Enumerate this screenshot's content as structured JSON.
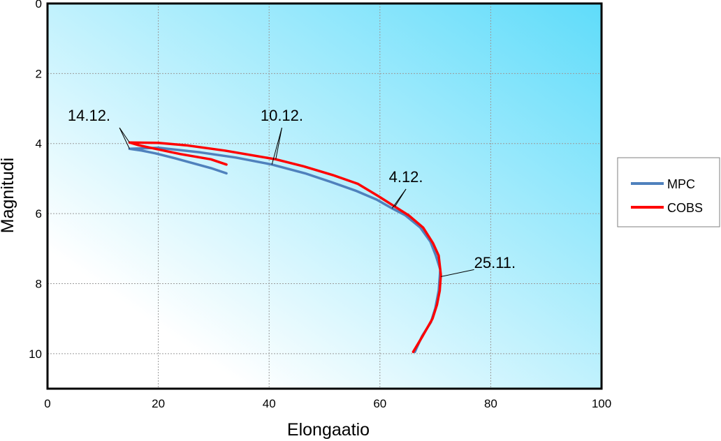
{
  "chart_data": {
    "type": "line",
    "xlabel": "Elongaatio",
    "ylabel": "Magnitudi",
    "xlim": [
      0,
      100
    ],
    "ylim": [
      0,
      11
    ],
    "y_inverted": true,
    "x_ticks": [
      "0",
      "20",
      "40",
      "60",
      "80",
      "100"
    ],
    "y_ticks": [
      "0",
      "2",
      "4",
      "6",
      "8",
      "10"
    ],
    "grid": true,
    "legend_position": "right",
    "background_gradient": [
      "#ffffff",
      "#5fdcfa"
    ],
    "series": [
      {
        "name": "MPC",
        "color": "#4f81bd",
        "points": [
          [
            66.3,
            9.95
          ],
          [
            67.6,
            9.5
          ],
          [
            69.2,
            9.1
          ],
          [
            70.0,
            8.7
          ],
          [
            70.6,
            8.2
          ],
          [
            70.9,
            7.6
          ],
          [
            70.1,
            7.2
          ],
          [
            69.1,
            6.8
          ],
          [
            67.3,
            6.4
          ],
          [
            64.6,
            6.05
          ],
          [
            62.2,
            5.85
          ],
          [
            59.4,
            5.6
          ],
          [
            55.7,
            5.35
          ],
          [
            51.2,
            5.1
          ],
          [
            46.5,
            4.85
          ],
          [
            40.5,
            4.6
          ],
          [
            34.0,
            4.4
          ],
          [
            27.5,
            4.25
          ],
          [
            20.0,
            4.12
          ],
          [
            14.8,
            4.15
          ],
          [
            17.0,
            4.2
          ],
          [
            19.5,
            4.28
          ],
          [
            23.0,
            4.42
          ],
          [
            29.5,
            4.7
          ],
          [
            32.3,
            4.85
          ]
        ]
      },
      {
        "name": "COBS",
        "color": "#ff0000",
        "points": [
          [
            66.0,
            9.95
          ],
          [
            67.7,
            9.5
          ],
          [
            69.5,
            9.0
          ],
          [
            70.3,
            8.6
          ],
          [
            70.8,
            8.2
          ],
          [
            71.0,
            7.75
          ],
          [
            70.6,
            7.2
          ],
          [
            69.6,
            6.85
          ],
          [
            67.8,
            6.4
          ],
          [
            65.2,
            6.05
          ],
          [
            62.7,
            5.8
          ],
          [
            59.7,
            5.5
          ],
          [
            56.0,
            5.15
          ],
          [
            51.5,
            4.9
          ],
          [
            46.2,
            4.65
          ],
          [
            41.2,
            4.45
          ],
          [
            32.0,
            4.2
          ],
          [
            25.0,
            4.05
          ],
          [
            20.0,
            3.98
          ],
          [
            14.8,
            3.97
          ],
          [
            16.5,
            4.05
          ],
          [
            19.5,
            4.15
          ],
          [
            24.0,
            4.3
          ],
          [
            29.5,
            4.45
          ],
          [
            32.3,
            4.6
          ]
        ]
      }
    ],
    "annotations": [
      {
        "text": "14.12.",
        "label_at": [
          7.5,
          3.35
        ],
        "anchor": [
          13.0,
          3.55
        ],
        "targets": [
          [
            14.8,
            3.97
          ],
          [
            14.8,
            4.15
          ]
        ]
      },
      {
        "text": "10.12.",
        "label_at": [
          42.3,
          3.35
        ],
        "anchor": [
          42.3,
          3.55
        ],
        "targets": [
          [
            41.2,
            4.45
          ],
          [
            40.5,
            4.6
          ]
        ]
      },
      {
        "text": "4.12.",
        "label_at": [
          64.7,
          5.1
        ],
        "anchor": [
          64.7,
          5.3
        ],
        "targets": [
          [
            62.7,
            5.8
          ],
          [
            62.2,
            5.85
          ]
        ]
      },
      {
        "text": "25.11.",
        "label_at": [
          77.0,
          7.55
        ],
        "anchor": [
          77.0,
          7.6
        ],
        "targets": [
          [
            71.0,
            7.8
          ]
        ]
      }
    ]
  }
}
